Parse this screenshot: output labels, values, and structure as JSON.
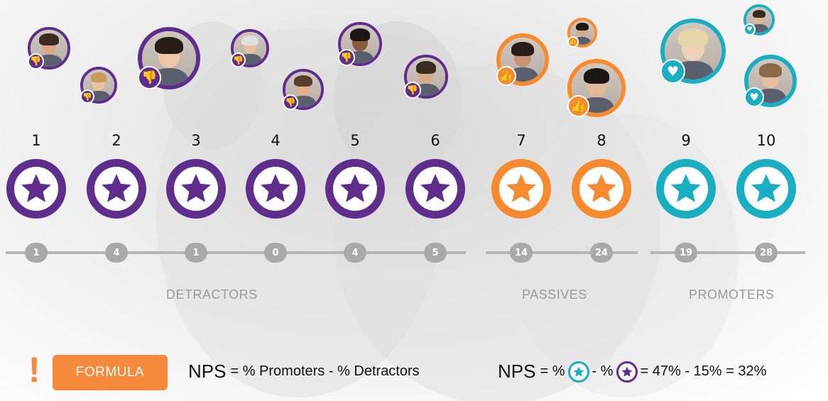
{
  "colors": {
    "detractor": "#5f2d8c",
    "passive": "#f58a2e",
    "promoter": "#19aec2",
    "formula_button": "#f58a3c"
  },
  "scores": [
    "1",
    "2",
    "3",
    "4",
    "5",
    "6",
    "7",
    "8",
    "9",
    "10"
  ],
  "counts": [
    "1",
    "4",
    "1",
    "0",
    "4",
    "5",
    "14",
    "24",
    "19",
    "28"
  ],
  "groups": {
    "detractors": "DETRACTORS",
    "passives": "PASSIVES",
    "promoters": "PROMOTERS"
  },
  "icons": {
    "score_marker": "star-icon",
    "detractor_badge": "thumbs-down-icon",
    "passive_badge": "thumbs-up-icon",
    "promoter_badge": "heart-icon"
  },
  "formula": {
    "warning_mark": "!",
    "button_label": "FORMULA",
    "line1_lead": "NPS",
    "line1_rest": "= % Promoters - % Detractors",
    "line2_lead": "NPS",
    "line2_eq": "= %",
    "line2_minus": "- %",
    "line2_result": "= 47% - 15% = 32%"
  }
}
